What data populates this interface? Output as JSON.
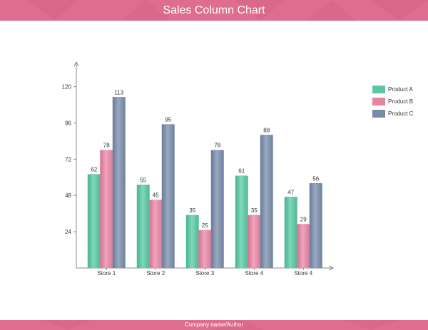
{
  "header": {
    "title": "Sales Column Chart"
  },
  "footer": {
    "text": "Company name/Author"
  },
  "colors": {
    "banner": "#de6d8f",
    "banner_pattern": "#d15f83",
    "axis": "#888888",
    "label_text": "#333333"
  },
  "chart_data": {
    "type": "bar",
    "title": "Sales Column Chart",
    "xlabel": "",
    "ylabel": "",
    "categories": [
      "Store 1",
      "Store 2",
      "Store 3",
      "Store 4",
      "Store 4"
    ],
    "y_ticks": [
      24,
      48,
      72,
      96,
      120
    ],
    "ylim": [
      0,
      130
    ],
    "grid": false,
    "legend_position": "right",
    "series": [
      {
        "name": "Product A",
        "color": "#5cc5a5",
        "values": [
          62,
          55,
          35,
          61,
          47
        ]
      },
      {
        "name": "Product B",
        "color": "#e384a1",
        "values": [
          78,
          45,
          25,
          35,
          29
        ]
      },
      {
        "name": "Product C",
        "color": "#7a8ba5",
        "values": [
          113,
          95,
          78,
          88,
          56
        ]
      }
    ]
  }
}
